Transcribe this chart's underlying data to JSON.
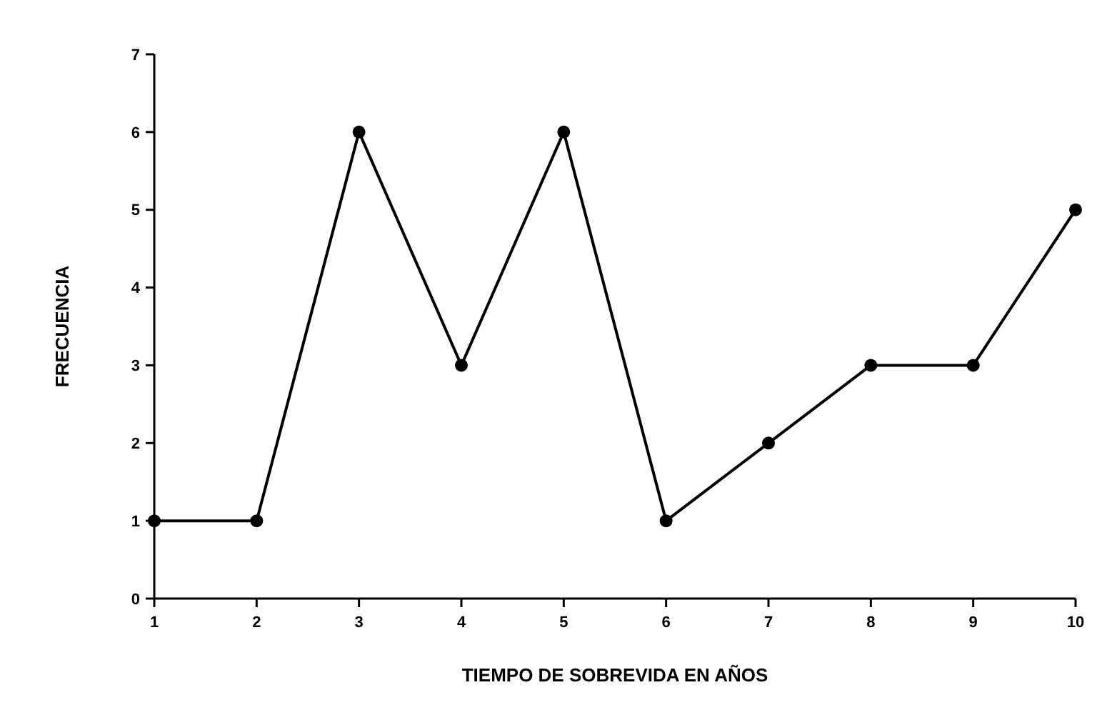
{
  "chart_data": {
    "type": "line",
    "xlabel": "TIEMPO DE SOBREVIDA EN AÑOS",
    "ylabel": "FRECUENCIA",
    "x": [
      1,
      2,
      3,
      4,
      5,
      6,
      7,
      8,
      9,
      10
    ],
    "series": [
      {
        "color": "#000000",
        "values": [
          1,
          1,
          6,
          3,
          6,
          1,
          2,
          3,
          3,
          5
        ]
      }
    ],
    "xlim": [
      1,
      10
    ],
    "xticks": [
      1,
      2,
      3,
      4,
      5,
      6,
      7,
      8,
      9,
      10
    ],
    "ylim": [
      0,
      7
    ],
    "yticks": [
      0,
      1,
      2,
      3,
      4,
      5,
      6,
      7
    ],
    "grid": false,
    "marker": "circle",
    "line_style": "solid"
  }
}
